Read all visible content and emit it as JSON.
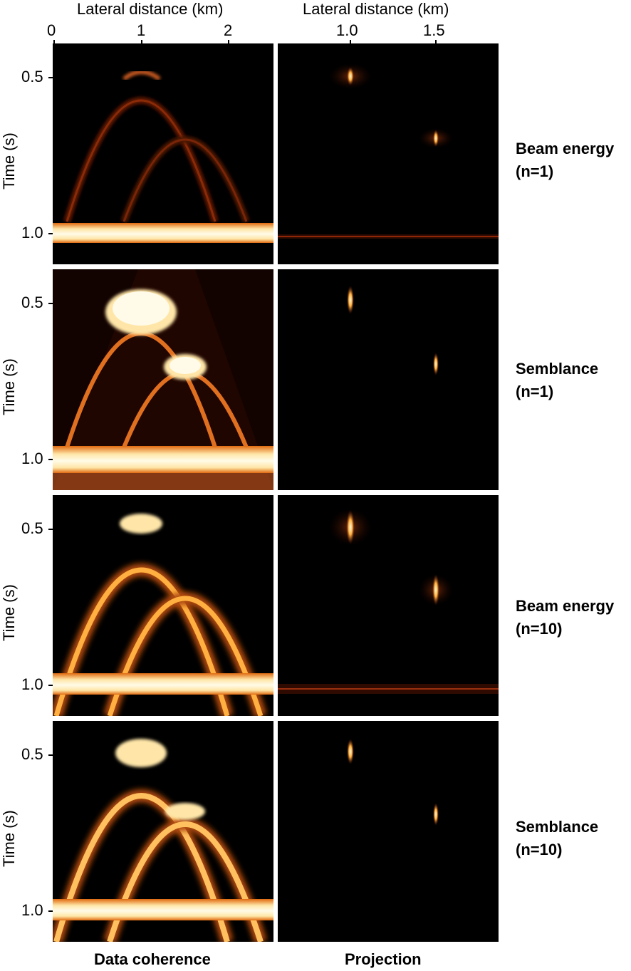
{
  "top_axes": {
    "left": {
      "title": "Lateral distance (km)",
      "ticks": [
        "0",
        "1",
        "2"
      ]
    },
    "right": {
      "title": "Lateral distance (km)",
      "ticks": [
        "1.0",
        "1.5"
      ]
    }
  },
  "y_axis": {
    "title": "Time (s)",
    "ticks": [
      "0.5",
      "1.0"
    ]
  },
  "rows": [
    {
      "label_line1": "Beam energy",
      "label_line2": "(n=1)"
    },
    {
      "label_line1": "Semblance",
      "label_line2": "(n=1)"
    },
    {
      "label_line1": "Beam energy",
      "label_line2": "(n=10)"
    },
    {
      "label_line1": "Semblance",
      "label_line2": "(n=10)"
    }
  ],
  "columns": {
    "left": "Data coherence",
    "right": "Projection"
  },
  "colors": {
    "background": "#000000",
    "hot_dark": "#7a1f00",
    "hot_mid": "#e06a10",
    "hot_bright": "#ffe6a8",
    "hot_white": "#fffbe8"
  }
}
